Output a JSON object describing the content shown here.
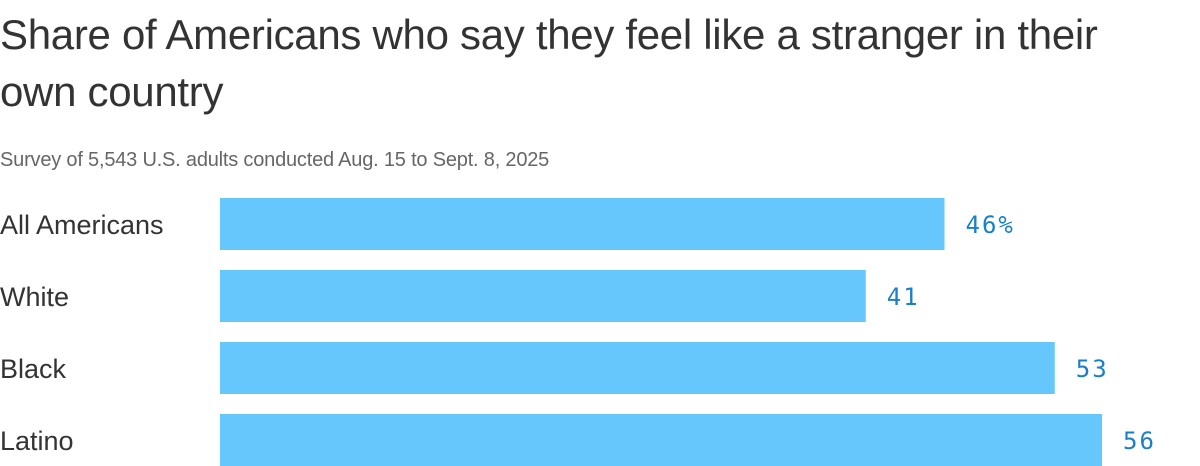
{
  "title": "Share of Americans who say they feel like a stranger in their own country",
  "subtitle": "Survey of 5,543 U.S. adults conducted Aug. 15 to Sept. 8, 2025",
  "colors": {
    "bar": "#66c7fc",
    "value_label": "#1a7fc7"
  },
  "chart_data": {
    "type": "bar",
    "orientation": "horizontal",
    "title": "Share of Americans who say they feel like a stranger in their own country",
    "subtitle": "Survey of 5,543 U.S. adults conducted Aug. 15 to Sept. 8, 2025",
    "categories": [
      "All Americans",
      "White",
      "Black",
      "Latino"
    ],
    "values": [
      46,
      41,
      53,
      56
    ],
    "value_labels": [
      "46%",
      "41",
      "53",
      "56"
    ],
    "xlim": [
      0,
      56
    ],
    "grid": false
  }
}
